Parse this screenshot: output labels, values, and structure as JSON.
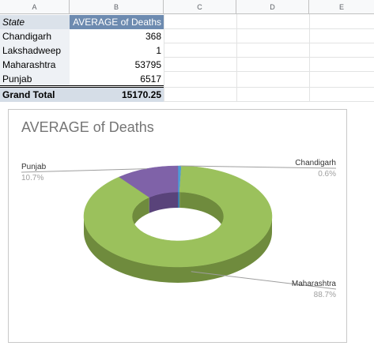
{
  "columns": [
    "A",
    "B",
    "C",
    "D",
    "E"
  ],
  "pivot": {
    "header": {
      "state": "State",
      "measure": "AVERAGE of Deaths"
    },
    "rows": [
      {
        "state": "Chandigarh",
        "value": "368"
      },
      {
        "state": "Lakshadweep",
        "value": "1"
      },
      {
        "state": "Maharashtra",
        "value": "53795"
      },
      {
        "state": "Punjab",
        "value": "6517"
      }
    ],
    "total": {
      "label": "Grand Total",
      "value": "15170.25"
    }
  },
  "chart": {
    "title": "AVERAGE of Deaths"
  },
  "chart_data": {
    "type": "pie",
    "variant": "3d-donut",
    "title": "AVERAGE of Deaths",
    "categories": [
      "Chandigarh",
      "Lakshadweep",
      "Maharashtra",
      "Punjab"
    ],
    "values": [
      368,
      1,
      53795,
      6517
    ],
    "percent_labels": [
      "0.6%",
      "",
      "88.7%",
      "10.7%"
    ],
    "colors": [
      "#4e9bd6",
      "#b9b9b9",
      "#9bc15c",
      "#7f62a8"
    ],
    "shade_colors": [
      "#3d7aab",
      "#8c8c8c",
      "#6f8b3d",
      "#59437a"
    ],
    "legend": "labels-outside"
  }
}
